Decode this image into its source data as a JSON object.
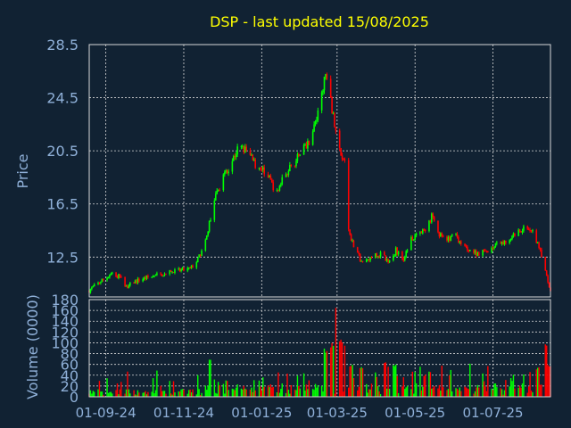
{
  "colors": {
    "background": "#112233",
    "title": "#ffff00",
    "axis_text": "#8fb0d8",
    "grid": "#d8d8d8",
    "up": "#00ff00",
    "down": "#ff0000"
  },
  "chart_data": [
    {
      "type": "candlestick",
      "title": "DSP - last updated 15/08/2025",
      "ylabel": "Price",
      "ylim": [
        9.5,
        28.5
      ],
      "yticks": [
        "28.5",
        "24.5",
        "20.5",
        "16.5",
        "12.5"
      ],
      "ytick_values": [
        28.5,
        24.5,
        20.5,
        16.5,
        12.5
      ],
      "xtick_labels": [
        "01-09-24",
        "01-11-24",
        "01-01-25",
        "01-03-25",
        "01-05-25",
        "01-07-25"
      ],
      "xtick_dates": [
        "2024-09-01",
        "2024-11-01",
        "2025-01-01",
        "2025-03-01",
        "2025-05-01",
        "2025-07-01"
      ],
      "x_range": [
        "2024-08-19",
        "2025-08-15"
      ],
      "grid": true,
      "price_path": [
        [
          "2024-08-19",
          10.0
        ],
        [
          "2024-08-23",
          10.3
        ],
        [
          "2024-08-30",
          10.8
        ],
        [
          "2024-09-05",
          11.2
        ],
        [
          "2024-09-12",
          11.0
        ],
        [
          "2024-09-18",
          10.2
        ],
        [
          "2024-09-22",
          10.6
        ],
        [
          "2024-10-01",
          10.9
        ],
        [
          "2024-10-10",
          11.1
        ],
        [
          "2024-10-20",
          11.3
        ],
        [
          "2024-10-30",
          11.5
        ],
        [
          "2024-11-06",
          11.6
        ],
        [
          "2024-11-12",
          12.3
        ],
        [
          "2024-11-18",
          13.6
        ],
        [
          "2024-11-22",
          15.5
        ],
        [
          "2024-11-26",
          17.0
        ],
        [
          "2024-12-02",
          18.6
        ],
        [
          "2024-12-08",
          19.6
        ],
        [
          "2024-12-14",
          20.8
        ],
        [
          "2024-12-20",
          20.5
        ],
        [
          "2024-12-26",
          19.6
        ],
        [
          "2025-01-02",
          19.0
        ],
        [
          "2025-01-08",
          18.2
        ],
        [
          "2025-01-13",
          17.3
        ],
        [
          "2025-01-18",
          18.5
        ],
        [
          "2025-01-24",
          19.4
        ],
        [
          "2025-02-01",
          20.2
        ],
        [
          "2025-02-08",
          21.5
        ],
        [
          "2025-02-14",
          23.2
        ],
        [
          "2025-02-18",
          25.5
        ],
        [
          "2025-02-21",
          26.1
        ],
        [
          "2025-02-26",
          23.0
        ],
        [
          "2025-03-02",
          20.8
        ],
        [
          "2025-03-07",
          19.7
        ],
        [
          "2025-03-10",
          14.5
        ],
        [
          "2025-03-14",
          13.3
        ],
        [
          "2025-03-20",
          12.2
        ],
        [
          "2025-03-28",
          12.5
        ],
        [
          "2025-04-05",
          12.8
        ],
        [
          "2025-04-10",
          12.0
        ],
        [
          "2025-04-16",
          13.0
        ],
        [
          "2025-04-22",
          12.3
        ],
        [
          "2025-04-28",
          13.9
        ],
        [
          "2025-05-04",
          14.2
        ],
        [
          "2025-05-10",
          14.6
        ],
        [
          "2025-05-15",
          15.8
        ],
        [
          "2025-05-20",
          14.2
        ],
        [
          "2025-05-26",
          13.7
        ],
        [
          "2025-06-01",
          14.4
        ],
        [
          "2025-06-06",
          13.4
        ],
        [
          "2025-06-12",
          13.1
        ],
        [
          "2025-06-18",
          12.8
        ],
        [
          "2025-06-25",
          12.9
        ],
        [
          "2025-07-02",
          13.3
        ],
        [
          "2025-07-08",
          13.5
        ],
        [
          "2025-07-14",
          13.9
        ],
        [
          "2025-07-20",
          14.4
        ],
        [
          "2025-07-26",
          14.8
        ],
        [
          "2025-08-01",
          14.6
        ],
        [
          "2025-08-05",
          13.5
        ],
        [
          "2025-08-09",
          12.3
        ],
        [
          "2025-08-12",
          11.0
        ],
        [
          "2025-08-15",
          9.9
        ]
      ]
    },
    {
      "type": "bar",
      "ylabel": "Volume (0000)",
      "ylim": [
        0,
        180
      ],
      "yticks": [
        "180",
        "160",
        "140",
        "120",
        "100",
        "80",
        "60",
        "40",
        "20",
        "0"
      ],
      "ytick_values": [
        180,
        160,
        140,
        120,
        100,
        80,
        60,
        40,
        20,
        0
      ],
      "xtick_labels": [
        "01-09-24",
        "01-11-24",
        "01-01-25",
        "01-03-25",
        "01-05-25",
        "01-07-25"
      ],
      "grid": true,
      "volume_peaks": [
        [
          "2024-11-22",
          70
        ],
        [
          "2025-02-20",
          90
        ],
        [
          "2025-02-25",
          100
        ],
        [
          "2025-03-01",
          170
        ],
        [
          "2025-03-04",
          110
        ],
        [
          "2025-03-08",
          95
        ],
        [
          "2025-03-12",
          60
        ],
        [
          "2025-03-20",
          55
        ],
        [
          "2025-04-07",
          65
        ],
        [
          "2025-04-15",
          60
        ],
        [
          "2025-05-12",
          50
        ],
        [
          "2025-06-14",
          65
        ],
        [
          "2025-08-05",
          55
        ],
        [
          "2025-08-11",
          105
        ],
        [
          "2025-08-14",
          60
        ]
      ]
    }
  ]
}
